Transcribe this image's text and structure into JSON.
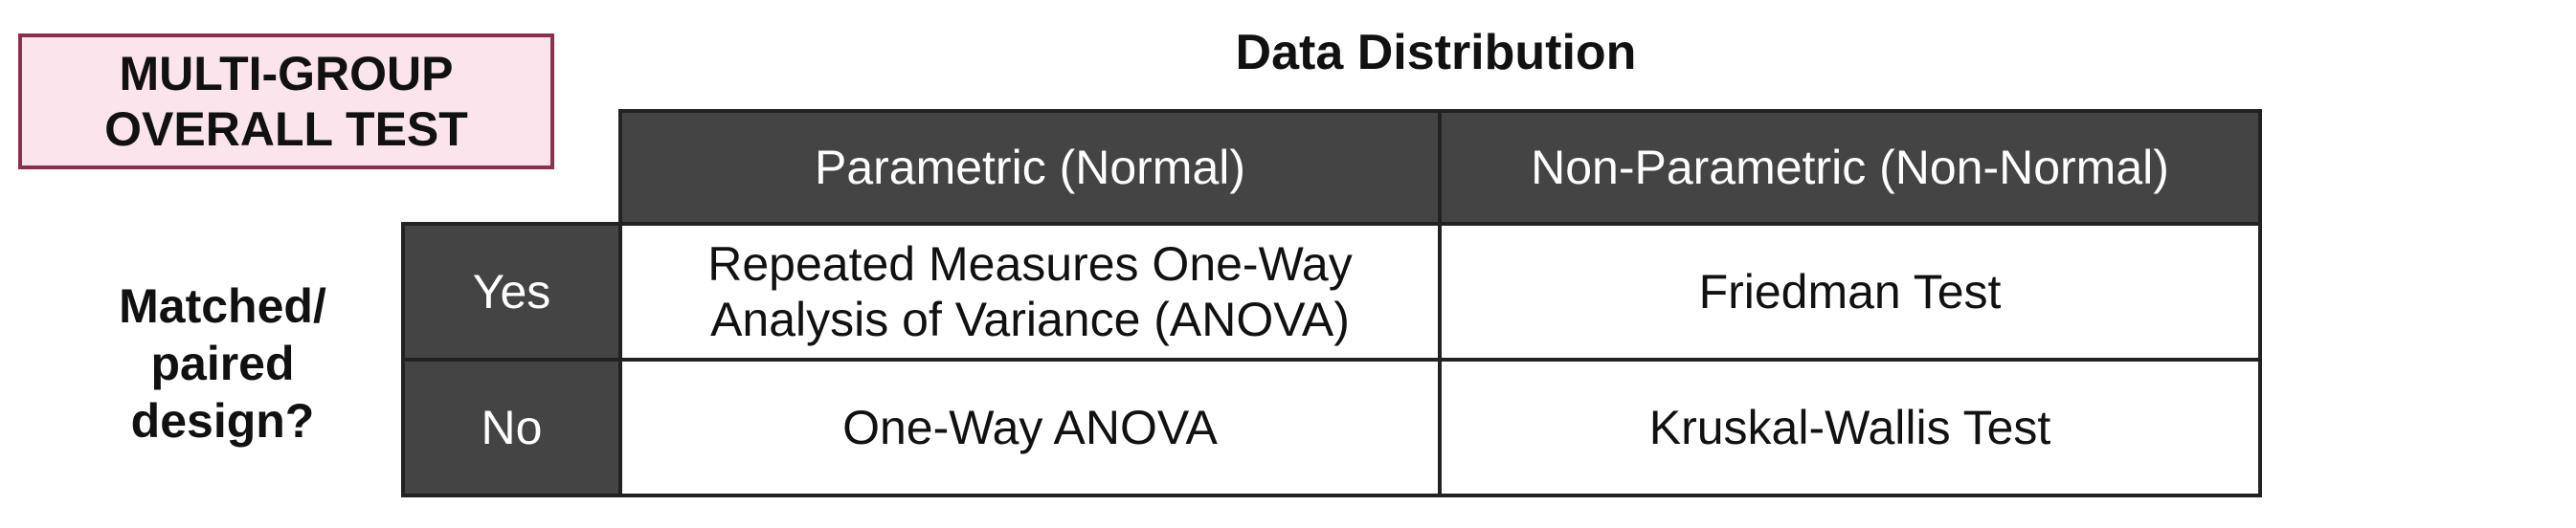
{
  "title_box": {
    "lines": [
      "MULTI-GROUP",
      "OVERALL TEST"
    ],
    "background": "#fce4ec",
    "border_color": "#8b2f4f"
  },
  "column_group_label": "Data Distribution",
  "row_group_label": {
    "lines": [
      "Matched/",
      "paired",
      "design?"
    ]
  },
  "table": {
    "header_color": "#444444",
    "columns": [
      "Parametric (Normal)",
      "Non-Parametric (Non-Normal)"
    ],
    "rows": [
      {
        "label": "Yes",
        "cells": [
          [
            "Repeated Measures One-Way",
            "Analysis of Variance (ANOVA)"
          ],
          [
            "Friedman Test"
          ]
        ]
      },
      {
        "label": "No",
        "cells": [
          [
            "One-Way ANOVA"
          ],
          [
            "Kruskal-Wallis Test"
          ]
        ]
      }
    ]
  }
}
